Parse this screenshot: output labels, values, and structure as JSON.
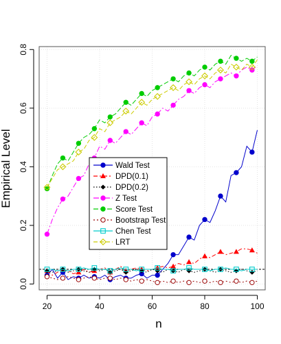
{
  "chart_data": {
    "type": "line",
    "title": "",
    "xlabel": "n",
    "ylabel": "Empirical Level",
    "xlim": [
      17,
      103
    ],
    "ylim": [
      -0.02,
      0.81
    ],
    "xticks": [
      20,
      40,
      60,
      80,
      100
    ],
    "yticks": [
      0.0,
      0.2,
      0.4,
      0.6,
      0.8
    ],
    "xtick_labels": [
      "20",
      "40",
      "60",
      "80",
      "100"
    ],
    "ytick_labels": [
      "0.0",
      "0.2",
      "0.4",
      "0.6",
      "0.8"
    ],
    "grid": true,
    "reference_line": 0.05,
    "legend_position": "center",
    "x": [
      20,
      22,
      24,
      26,
      28,
      30,
      32,
      34,
      36,
      38,
      40,
      42,
      44,
      46,
      48,
      50,
      52,
      54,
      56,
      58,
      60,
      62,
      64,
      66,
      68,
      70,
      72,
      74,
      76,
      78,
      80,
      82,
      84,
      86,
      88,
      90,
      92,
      94,
      96,
      98,
      100
    ],
    "series": [
      {
        "name": "Wald Test",
        "color": "#0000CC",
        "dash": "",
        "marker": "circle-filled",
        "values": [
          0.03,
          0.05,
          0.02,
          0.04,
          0.015,
          0.025,
          0.02,
          0.03,
          0.02,
          0.025,
          0.02,
          0.03,
          0.015,
          0.025,
          0.03,
          0.02,
          0.02,
          0.03,
          0.035,
          0.02,
          0.03,
          0.03,
          0.05,
          0.07,
          0.1,
          0.1,
          0.13,
          0.16,
          0.15,
          0.2,
          0.22,
          0.21,
          0.25,
          0.3,
          0.28,
          0.37,
          0.38,
          0.4,
          0.47,
          0.45,
          0.525
        ]
      },
      {
        "name": "DPD(0.1)",
        "color": "#FF0000",
        "dash": "6,3,2,3",
        "marker": "triangle-filled",
        "values": [
          0.045,
          0.03,
          0.04,
          0.05,
          0.045,
          0.035,
          0.04,
          0.05,
          0.04,
          0.045,
          0.05,
          0.055,
          0.04,
          0.05,
          0.06,
          0.045,
          0.05,
          0.055,
          0.05,
          0.045,
          0.05,
          0.055,
          0.06,
          0.055,
          0.06,
          0.07,
          0.065,
          0.075,
          0.07,
          0.085,
          0.095,
          0.09,
          0.1,
          0.11,
          0.1,
          0.105,
          0.11,
          0.12,
          0.12,
          0.115,
          0.105
        ]
      },
      {
        "name": "DPD(0.2)",
        "color": "#000000",
        "dash": "1.5,2.5",
        "marker": "diamond-filled",
        "values": [
          0.045,
          0.04,
          0.045,
          0.05,
          0.04,
          0.045,
          0.05,
          0.045,
          0.04,
          0.05,
          0.045,
          0.05,
          0.04,
          0.045,
          0.05,
          0.04,
          0.045,
          0.05,
          0.045,
          0.04,
          0.05,
          0.045,
          0.04,
          0.05,
          0.045,
          0.04,
          0.05,
          0.045,
          0.04,
          0.045,
          0.05,
          0.045,
          0.04,
          0.05,
          0.045,
          0.04,
          0.045,
          0.05,
          0.045,
          0.04,
          0.045
        ]
      },
      {
        "name": "Z Test",
        "color": "#FF00FF",
        "dash": "8,3,2,3",
        "marker": "circle-filled",
        "values": [
          0.17,
          0.22,
          0.26,
          0.29,
          0.3,
          0.33,
          0.36,
          0.37,
          0.41,
          0.43,
          0.47,
          0.46,
          0.49,
          0.48,
          0.5,
          0.52,
          0.51,
          0.53,
          0.55,
          0.54,
          0.57,
          0.58,
          0.6,
          0.59,
          0.61,
          0.63,
          0.64,
          0.66,
          0.65,
          0.67,
          0.68,
          0.67,
          0.69,
          0.7,
          0.71,
          0.72,
          0.71,
          0.73,
          0.74,
          0.73,
          0.745
        ]
      },
      {
        "name": "Score Test",
        "color": "#00CC00",
        "dash": "7,3",
        "marker": "circle-filled",
        "values": [
          0.325,
          0.37,
          0.41,
          0.43,
          0.42,
          0.45,
          0.48,
          0.5,
          0.51,
          0.53,
          0.56,
          0.55,
          0.57,
          0.58,
          0.6,
          0.62,
          0.61,
          0.63,
          0.65,
          0.64,
          0.66,
          0.67,
          0.68,
          0.69,
          0.7,
          0.69,
          0.71,
          0.72,
          0.71,
          0.73,
          0.74,
          0.73,
          0.75,
          0.76,
          0.75,
          0.78,
          0.77,
          0.76,
          0.77,
          0.76,
          0.775
        ]
      },
      {
        "name": "Bootstrap Test",
        "color": "#990000",
        "dash": "2,3",
        "marker": "circle-open",
        "values": [
          0.025,
          0.02,
          0.015,
          0.02,
          0.025,
          0.02,
          0.015,
          0.02,
          0.025,
          0.02,
          0.015,
          0.02,
          0.02,
          0.015,
          0.02,
          0.015,
          0.01,
          0.015,
          0.01,
          0.015,
          0.01,
          0.005,
          0.01,
          0.005,
          0.01,
          0.005,
          0.01,
          0.005,
          0.01,
          0.005,
          0.01,
          0.005,
          0.01,
          0.005,
          0.01,
          0.005,
          0.01,
          0.005,
          0.01,
          0.005,
          0.01
        ]
      },
      {
        "name": "Chen Test",
        "color": "#00CCCC",
        "dash": "",
        "marker": "square-open",
        "values": [
          0.05,
          0.05,
          0.045,
          0.05,
          0.045,
          0.05,
          0.05,
          0.055,
          0.05,
          0.055,
          0.05,
          0.05,
          0.045,
          0.05,
          0.055,
          0.05,
          0.05,
          0.045,
          0.05,
          0.05,
          0.05,
          0.055,
          0.05,
          0.05,
          0.045,
          0.05,
          0.05,
          0.055,
          0.05,
          0.05,
          0.05,
          0.045,
          0.05,
          0.05,
          0.055,
          0.05,
          0.05,
          0.045,
          0.05,
          0.05,
          0.05
        ]
      },
      {
        "name": "LRT",
        "color": "#CCCC00",
        "dash": "6,3",
        "marker": "diamond-open",
        "values": [
          0.33,
          0.36,
          0.39,
          0.4,
          0.41,
          0.42,
          0.45,
          0.46,
          0.49,
          0.5,
          0.53,
          0.52,
          0.55,
          0.56,
          0.57,
          0.59,
          0.58,
          0.6,
          0.62,
          0.61,
          0.63,
          0.64,
          0.65,
          0.66,
          0.67,
          0.66,
          0.68,
          0.69,
          0.68,
          0.7,
          0.71,
          0.7,
          0.72,
          0.73,
          0.72,
          0.75,
          0.74,
          0.73,
          0.75,
          0.74,
          0.765
        ]
      }
    ]
  }
}
